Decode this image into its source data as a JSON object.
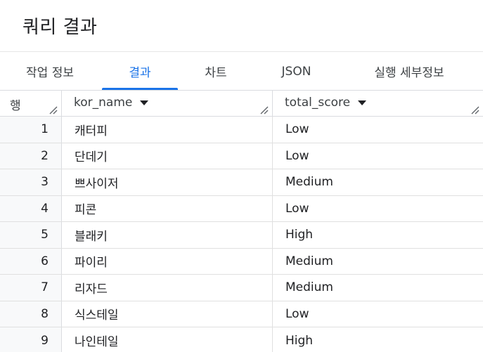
{
  "title": "쿼리 결과",
  "tabs": [
    {
      "label": "작업 정보",
      "active": false
    },
    {
      "label": "결과",
      "active": true
    },
    {
      "label": "차트",
      "active": false
    },
    {
      "label": "JSON",
      "active": false
    },
    {
      "label": "실행 세부정보",
      "active": false
    }
  ],
  "table": {
    "row_header": "행",
    "columns": [
      "kor_name",
      "total_score"
    ],
    "rows": [
      {
        "n": "1",
        "kor_name": "캐터피",
        "total_score": "Low"
      },
      {
        "n": "2",
        "kor_name": "단데기",
        "total_score": "Low"
      },
      {
        "n": "3",
        "kor_name": "쁘사이저",
        "total_score": "Medium"
      },
      {
        "n": "4",
        "kor_name": "피콘",
        "total_score": "Low"
      },
      {
        "n": "5",
        "kor_name": "블래키",
        "total_score": "High"
      },
      {
        "n": "6",
        "kor_name": "파이리",
        "total_score": "Medium"
      },
      {
        "n": "7",
        "kor_name": "리자드",
        "total_score": "Medium"
      },
      {
        "n": "8",
        "kor_name": "식스테일",
        "total_score": "Low"
      },
      {
        "n": "9",
        "kor_name": "나인테일",
        "total_score": "High"
      }
    ]
  },
  "colors": {
    "accent": "#1a73e8",
    "border": "#dadce0",
    "row_number_bg": "#f8f9fa"
  }
}
